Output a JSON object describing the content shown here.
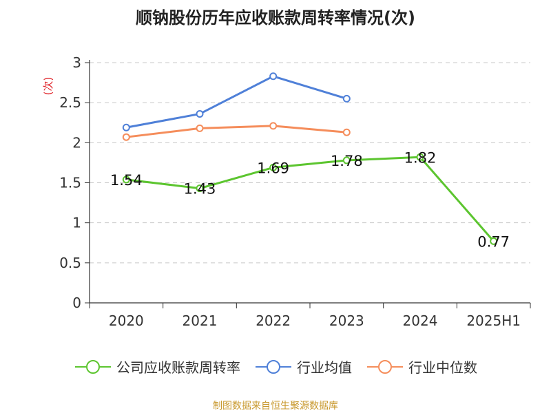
{
  "chart_data": {
    "type": "line",
    "title": "顺钠股份历年应收账款周转率情况(次)",
    "ylabel": "(次)",
    "categories": [
      "2020",
      "2021",
      "2022",
      "2023",
      "2024",
      "2025H1"
    ],
    "ylim": [
      0,
      3
    ],
    "yticks": [
      "0",
      "0.5",
      "1",
      "1.5",
      "2",
      "2.5",
      "3"
    ],
    "grid": true,
    "legend_position": "bottom",
    "series": [
      {
        "name": "公司应收账款周转率",
        "color": "#5cc52f",
        "values": [
          1.54,
          1.43,
          1.69,
          1.78,
          1.82,
          0.77
        ],
        "labels": [
          "1.54",
          "1.43",
          "1.69",
          "1.78",
          "1.82",
          "0.77"
        ],
        "show_labels": true
      },
      {
        "name": "行业均值",
        "color": "#4f80d8",
        "values": [
          2.19,
          2.36,
          2.83,
          2.55,
          null,
          null
        ],
        "show_labels": false
      },
      {
        "name": "行业中位数",
        "color": "#f58d5b",
        "values": [
          2.07,
          2.18,
          2.21,
          2.13,
          null,
          null
        ],
        "show_labels": false
      }
    ]
  },
  "source": "制图数据来自恒生聚源数据库"
}
